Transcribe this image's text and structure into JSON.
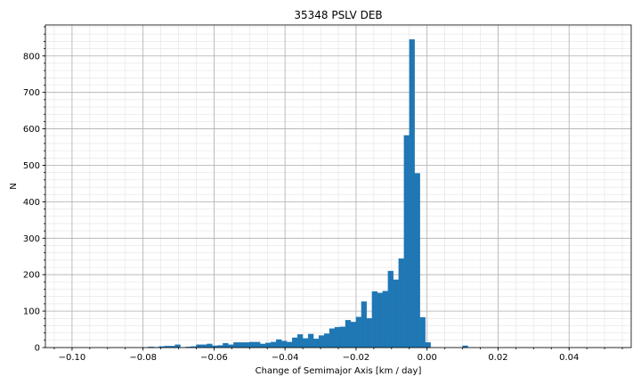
{
  "chart_data": {
    "type": "bar",
    "title": "35348 PSLV DEB",
    "xlabel": "Change of Semimajor Axis [km / day]",
    "ylabel": "N",
    "xlim": [
      -0.1075,
      0.0575
    ],
    "ylim": [
      0,
      885
    ],
    "xticks": [
      -0.1,
      -0.08,
      -0.06,
      -0.04,
      -0.02,
      0.0,
      0.02,
      0.04
    ],
    "xtick_labels": [
      "−0.10",
      "−0.08",
      "−0.06",
      "−0.04",
      "−0.02",
      "0.00",
      "0.02",
      "0.04"
    ],
    "yticks": [
      0,
      100,
      200,
      300,
      400,
      500,
      600,
      700,
      800
    ],
    "ytick_labels": [
      "0",
      "100",
      "200",
      "300",
      "400",
      "500",
      "600",
      "700",
      "800"
    ],
    "grid": true,
    "minor_grid": true,
    "bar_color": "#1f77b4",
    "bin_width": 0.0015,
    "bins": [
      {
        "x": -0.0785,
        "n": 2
      },
      {
        "x": -0.077,
        "n": 1
      },
      {
        "x": -0.0755,
        "n": 3
      },
      {
        "x": -0.074,
        "n": 4
      },
      {
        "x": -0.0725,
        "n": 4
      },
      {
        "x": -0.071,
        "n": 8
      },
      {
        "x": -0.068,
        "n": 2
      },
      {
        "x": -0.0665,
        "n": 3
      },
      {
        "x": -0.065,
        "n": 8
      },
      {
        "x": -0.0635,
        "n": 8
      },
      {
        "x": -0.062,
        "n": 10
      },
      {
        "x": -0.0605,
        "n": 5
      },
      {
        "x": -0.059,
        "n": 6
      },
      {
        "x": -0.0575,
        "n": 12
      },
      {
        "x": -0.056,
        "n": 8
      },
      {
        "x": -0.0545,
        "n": 14
      },
      {
        "x": -0.053,
        "n": 14
      },
      {
        "x": -0.0515,
        "n": 14
      },
      {
        "x": -0.05,
        "n": 15
      },
      {
        "x": -0.0485,
        "n": 15
      },
      {
        "x": -0.047,
        "n": 10
      },
      {
        "x": -0.0455,
        "n": 13
      },
      {
        "x": -0.044,
        "n": 15
      },
      {
        "x": -0.0425,
        "n": 22
      },
      {
        "x": -0.041,
        "n": 18
      },
      {
        "x": -0.0395,
        "n": 15
      },
      {
        "x": -0.038,
        "n": 27
      },
      {
        "x": -0.0365,
        "n": 36
      },
      {
        "x": -0.035,
        "n": 25
      },
      {
        "x": -0.0335,
        "n": 37
      },
      {
        "x": -0.032,
        "n": 24
      },
      {
        "x": -0.0305,
        "n": 33
      },
      {
        "x": -0.029,
        "n": 38
      },
      {
        "x": -0.0275,
        "n": 52
      },
      {
        "x": -0.026,
        "n": 56
      },
      {
        "x": -0.0245,
        "n": 57
      },
      {
        "x": -0.023,
        "n": 75
      },
      {
        "x": -0.0215,
        "n": 70
      },
      {
        "x": -0.02,
        "n": 84
      },
      {
        "x": -0.0185,
        "n": 126
      },
      {
        "x": -0.017,
        "n": 80
      },
      {
        "x": -0.0155,
        "n": 154
      },
      {
        "x": -0.014,
        "n": 150
      },
      {
        "x": -0.0125,
        "n": 155
      },
      {
        "x": -0.011,
        "n": 210
      },
      {
        "x": -0.0095,
        "n": 186
      },
      {
        "x": -0.008,
        "n": 244
      },
      {
        "x": -0.0065,
        "n": 582
      },
      {
        "x": -0.005,
        "n": 845
      },
      {
        "x": -0.0035,
        "n": 478
      },
      {
        "x": -0.002,
        "n": 83
      },
      {
        "x": -0.0005,
        "n": 14
      },
      {
        "x": 0.01,
        "n": 5
      }
    ]
  }
}
